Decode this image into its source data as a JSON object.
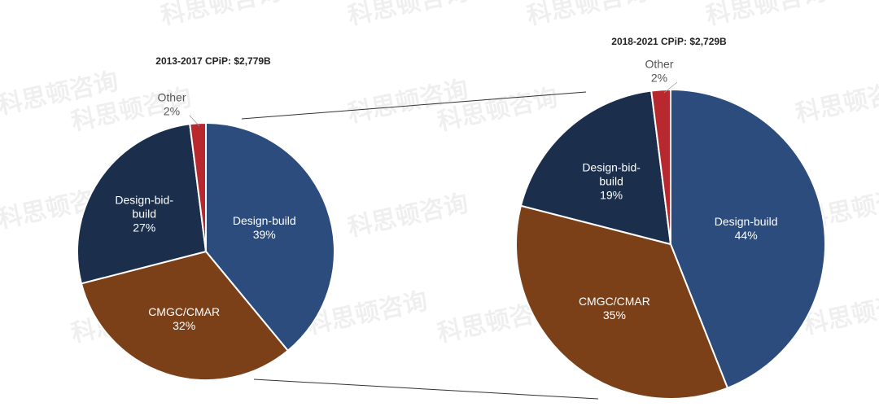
{
  "watermark": "科思顿咨询",
  "chart_data": [
    {
      "type": "pie",
      "title": "2013-2017 CPiP: $2,779B",
      "slices": [
        {
          "label": "Design-build",
          "value": 39,
          "pct_label": "39%",
          "color": "#2b4c7c"
        },
        {
          "label": "CMGC/CMAR",
          "value": 32,
          "pct_label": "32%",
          "color": "#7b4018"
        },
        {
          "label": "Design-bid-build",
          "value": 27,
          "pct_label": "27%",
          "color": "#1b2e4c"
        },
        {
          "label": "Other",
          "value": 2,
          "pct_label": "2%",
          "color": "#b8292f"
        }
      ]
    },
    {
      "type": "pie",
      "title": "2018-2021 CPiP: $2,729B",
      "slices": [
        {
          "label": "Design-build",
          "value": 44,
          "pct_label": "44%",
          "color": "#2b4c7c"
        },
        {
          "label": "CMGC/CMAR",
          "value": 35,
          "pct_label": "35%",
          "color": "#7b4018"
        },
        {
          "label": "Design-bid-build",
          "value": 19,
          "pct_label": "19%",
          "color": "#1b2e4c"
        },
        {
          "label": "Other",
          "value": 2,
          "pct_label": "2%",
          "color": "#b8292f"
        }
      ]
    }
  ]
}
